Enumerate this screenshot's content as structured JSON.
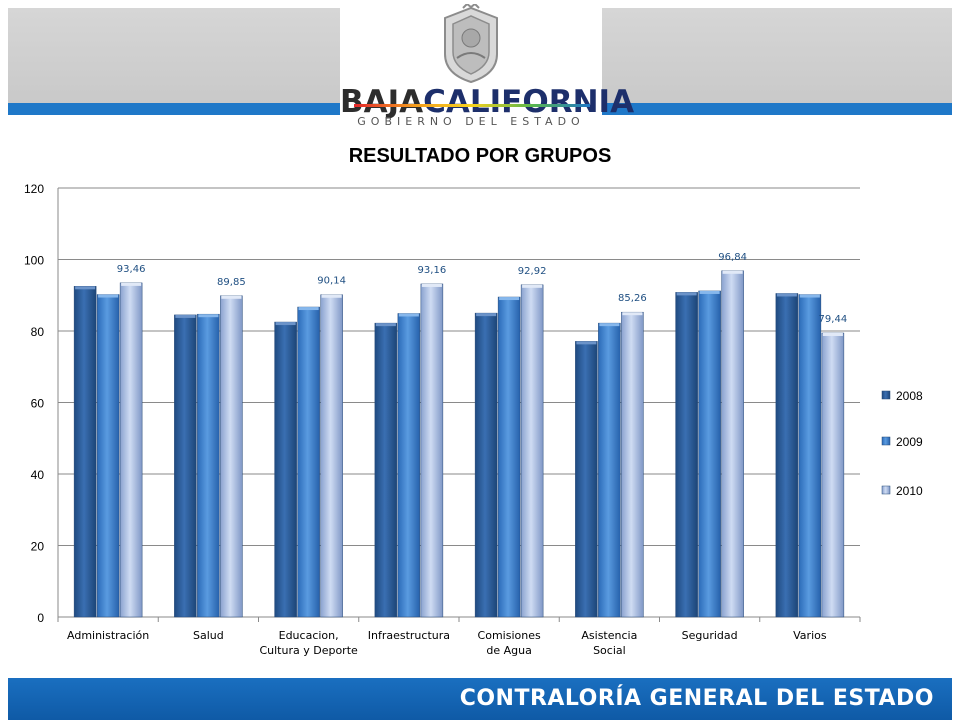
{
  "header": {
    "brand_part1": "BAJA",
    "brand_part2": "CALIFORNIA",
    "subtitle": "GOBIERNO DEL ESTADO"
  },
  "footer": {
    "text": "CONTRALORÍA GENERAL DEL ESTADO"
  },
  "colors": {
    "series_2008": "#2c5f9e",
    "series_2009": "#3a7fd0",
    "series_2010": "#a6b9e0",
    "data_label": "#1f4f82",
    "header_line": "#1f78c8",
    "footer_band": "#1565b6"
  },
  "chart_data": {
    "type": "bar",
    "title": "RESULTADO POR GRUPOS",
    "categories": [
      "Administración",
      "Salud",
      "Educacion, Cultura y Deporte",
      "Infraestructura",
      "Comisiones de Agua",
      "Asistencia Social",
      "Seguridad",
      "Varios"
    ],
    "series": [
      {
        "name": "2008",
        "values": [
          92.5,
          84.5,
          82.5,
          82.2,
          85.0,
          77.1,
          90.8,
          90.5
        ]
      },
      {
        "name": "2009",
        "values": [
          90.2,
          84.7,
          86.7,
          84.9,
          89.5,
          82.2,
          91.2,
          90.2
        ]
      },
      {
        "name": "2010",
        "values": [
          93.46,
          89.85,
          90.14,
          93.16,
          92.92,
          85.26,
          96.84,
          79.44
        ]
      }
    ],
    "data_labels": {
      "series": "2010",
      "labels": [
        "93,46",
        "89,85",
        "90,14",
        "93,16",
        "92,92",
        "85,26",
        "96,84",
        "79,44"
      ]
    },
    "y_ticks": [
      0,
      20,
      40,
      60,
      80,
      100,
      120
    ],
    "ylim": [
      0,
      120
    ],
    "grid": true,
    "legend": "right"
  }
}
